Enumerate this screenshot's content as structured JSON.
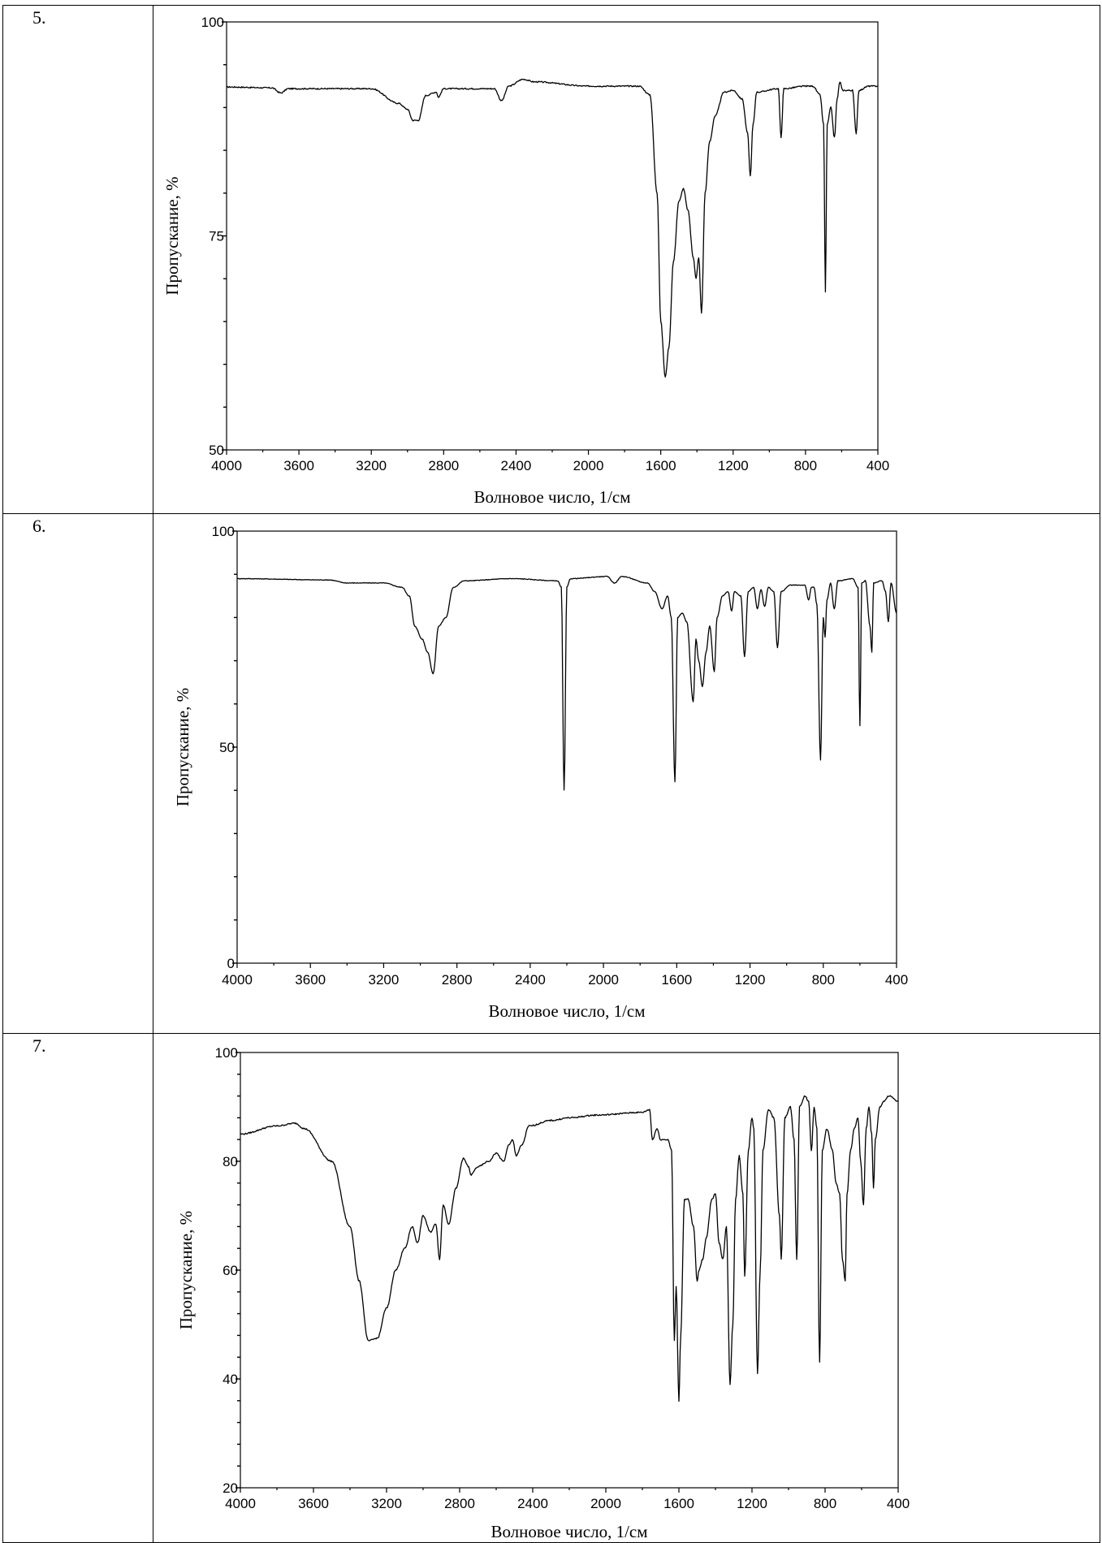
{
  "rows": [
    {
      "number": "5."
    },
    {
      "number": "6."
    },
    {
      "number": "7."
    }
  ],
  "chart_data": [
    {
      "type": "line",
      "xlabel": "Волновое число, 1/см",
      "ylabel": "Пропускание, %",
      "xlim": [
        4000,
        400
      ],
      "ylim": [
        50,
        100
      ],
      "x_ticks": [
        "4000",
        "3600",
        "3200",
        "2800",
        "2400",
        "2000",
        "1600",
        "1200",
        "800",
        "400"
      ],
      "y_ticks": [
        "50",
        "75",
        "100"
      ],
      "baseline": 92.5,
      "anchors": [
        [
          4000,
          92.4
        ],
        [
          3750,
          92.3
        ],
        [
          3700,
          91.7
        ],
        [
          3660,
          92.2
        ],
        [
          3200,
          92.2
        ],
        [
          3050,
          90.5
        ],
        [
          3000,
          89.8
        ],
        [
          2970,
          88.5
        ],
        [
          2940,
          88.5
        ],
        [
          2900,
          91.4
        ],
        [
          2840,
          91.8
        ],
        [
          2830,
          91.2
        ],
        [
          2800,
          92.2
        ],
        [
          2520,
          92.2
        ],
        [
          2480,
          90.8
        ],
        [
          2440,
          92.5
        ],
        [
          2360,
          93.3
        ],
        [
          2300,
          93.0
        ],
        [
          2000,
          92.5
        ],
        [
          1720,
          92.5
        ],
        [
          1660,
          91.5
        ],
        [
          1620,
          80
        ],
        [
          1600,
          65
        ],
        [
          1575,
          58.5
        ],
        [
          1555,
          62
        ],
        [
          1530,
          72
        ],
        [
          1500,
          79
        ],
        [
          1475,
          80.5
        ],
        [
          1450,
          78
        ],
        [
          1420,
          72.5
        ],
        [
          1405,
          70
        ],
        [
          1390,
          72.5
        ],
        [
          1375,
          66
        ],
        [
          1355,
          80
        ],
        [
          1330,
          86
        ],
        [
          1300,
          89
        ],
        [
          1250,
          91.8
        ],
        [
          1200,
          92
        ],
        [
          1150,
          91
        ],
        [
          1120,
          87
        ],
        [
          1105,
          82
        ],
        [
          1090,
          88
        ],
        [
          1070,
          91.8
        ],
        [
          950,
          92.2
        ],
        [
          935,
          86.5
        ],
        [
          920,
          92.2
        ],
        [
          800,
          92.5
        ],
        [
          760,
          92.5
        ],
        [
          720,
          91.5
        ],
        [
          700,
          88
        ],
        [
          690,
          68.5
        ],
        [
          680,
          88
        ],
        [
          660,
          90
        ],
        [
          640,
          86.5
        ],
        [
          625,
          91
        ],
        [
          610,
          93
        ],
        [
          595,
          92
        ],
        [
          540,
          92
        ],
        [
          520,
          87
        ],
        [
          505,
          92
        ],
        [
          450,
          92.5
        ],
        [
          400,
          92.5
        ]
      ],
      "noise": 0.15
    },
    {
      "type": "line",
      "xlabel": "Волновое число, 1/см",
      "ylabel": "Пропускание, %",
      "xlim": [
        4000,
        400
      ],
      "ylim": [
        0,
        100
      ],
      "x_ticks": [
        "4000",
        "3600",
        "3200",
        "2800",
        "2400",
        "2000",
        "1600",
        "1200",
        "800",
        "400"
      ],
      "y_ticks": [
        "0",
        "50",
        "100"
      ],
      "anchors": [
        [
          4000,
          89
        ],
        [
          3500,
          88.7
        ],
        [
          3400,
          88
        ],
        [
          3200,
          88
        ],
        [
          3100,
          87
        ],
        [
          3060,
          85
        ],
        [
          3030,
          78
        ],
        [
          2990,
          75
        ],
        [
          2960,
          72
        ],
        [
          2930,
          67
        ],
        [
          2900,
          78
        ],
        [
          2860,
          80
        ],
        [
          2820,
          87
        ],
        [
          2760,
          88.5
        ],
        [
          2500,
          89
        ],
        [
          2250,
          88.5
        ],
        [
          2230,
          87
        ],
        [
          2215,
          40
        ],
        [
          2200,
          87
        ],
        [
          2180,
          89
        ],
        [
          1980,
          89.5
        ],
        [
          1940,
          88
        ],
        [
          1900,
          89.5
        ],
        [
          1760,
          88
        ],
        [
          1720,
          86
        ],
        [
          1680,
          82
        ],
        [
          1650,
          85
        ],
        [
          1630,
          80
        ],
        [
          1610,
          42
        ],
        [
          1595,
          80
        ],
        [
          1570,
          81
        ],
        [
          1545,
          79
        ],
        [
          1510,
          60.5
        ],
        [
          1495,
          75
        ],
        [
          1480,
          70
        ],
        [
          1460,
          64
        ],
        [
          1440,
          72
        ],
        [
          1420,
          78
        ],
        [
          1395,
          67.5
        ],
        [
          1380,
          80
        ],
        [
          1350,
          85
        ],
        [
          1320,
          86
        ],
        [
          1300,
          81.5
        ],
        [
          1285,
          86
        ],
        [
          1250,
          85
        ],
        [
          1230,
          71
        ],
        [
          1210,
          86
        ],
        [
          1180,
          87
        ],
        [
          1160,
          82
        ],
        [
          1140,
          86.5
        ],
        [
          1120,
          82.5
        ],
        [
          1100,
          87
        ],
        [
          1070,
          86
        ],
        [
          1050,
          73
        ],
        [
          1030,
          86
        ],
        [
          980,
          87.5
        ],
        [
          900,
          87.5
        ],
        [
          880,
          84
        ],
        [
          865,
          87
        ],
        [
          850,
          87
        ],
        [
          835,
          83
        ],
        [
          815,
          47
        ],
        [
          800,
          80
        ],
        [
          790,
          75.5
        ],
        [
          780,
          84
        ],
        [
          760,
          88
        ],
        [
          740,
          82
        ],
        [
          720,
          88.5
        ],
        [
          640,
          89
        ],
        [
          610,
          87
        ],
        [
          600,
          55
        ],
        [
          590,
          88
        ],
        [
          570,
          88.5
        ],
        [
          545,
          78
        ],
        [
          535,
          72
        ],
        [
          525,
          88
        ],
        [
          480,
          88.5
        ],
        [
          460,
          86
        ],
        [
          445,
          79
        ],
        [
          430,
          88
        ],
        [
          400,
          81
        ]
      ],
      "noise": 0.15
    },
    {
      "type": "line",
      "xlabel": "Волновое число, 1/см",
      "ylabel": "Пропускание, %",
      "xlim": [
        4000,
        400
      ],
      "ylim": [
        20,
        100
      ],
      "x_ticks": [
        "4000",
        "3600",
        "3200",
        "2800",
        "2400",
        "2000",
        "1600",
        "1200",
        "800",
        "400"
      ],
      "y_ticks": [
        "20",
        "40",
        "60",
        "80",
        "100"
      ],
      "anchors": [
        [
          4000,
          85
        ],
        [
          3800,
          86.5
        ],
        [
          3700,
          87
        ],
        [
          3650,
          86
        ],
        [
          3500,
          80
        ],
        [
          3400,
          68
        ],
        [
          3350,
          58
        ],
        [
          3300,
          47
        ],
        [
          3250,
          47.5
        ],
        [
          3200,
          53
        ],
        [
          3150,
          60
        ],
        [
          3100,
          64
        ],
        [
          3060,
          68
        ],
        [
          3030,
          65
        ],
        [
          3000,
          70
        ],
        [
          2960,
          67
        ],
        [
          2930,
          68.5
        ],
        [
          2910,
          62
        ],
        [
          2890,
          72
        ],
        [
          2860,
          68.5
        ],
        [
          2820,
          75
        ],
        [
          2780,
          80.5
        ],
        [
          2750,
          79
        ],
        [
          2740,
          77.5
        ],
        [
          2700,
          79
        ],
        [
          2640,
          80
        ],
        [
          2600,
          81.5
        ],
        [
          2560,
          80
        ],
        [
          2530,
          83
        ],
        [
          2510,
          84
        ],
        [
          2490,
          81
        ],
        [
          2460,
          83
        ],
        [
          2420,
          86.5
        ],
        [
          2300,
          87.5
        ],
        [
          2200,
          88
        ],
        [
          2050,
          88.5
        ],
        [
          1800,
          89
        ],
        [
          1760,
          89.5
        ],
        [
          1745,
          84
        ],
        [
          1720,
          86
        ],
        [
          1700,
          84
        ],
        [
          1660,
          84
        ],
        [
          1640,
          82
        ],
        [
          1625,
          47
        ],
        [
          1615,
          57
        ],
        [
          1600,
          36
        ],
        [
          1590,
          48
        ],
        [
          1570,
          73
        ],
        [
          1550,
          73
        ],
        [
          1520,
          68
        ],
        [
          1500,
          58
        ],
        [
          1490,
          60
        ],
        [
          1470,
          62
        ],
        [
          1450,
          66
        ],
        [
          1420,
          73
        ],
        [
          1400,
          74
        ],
        [
          1380,
          65
        ],
        [
          1360,
          62
        ],
        [
          1340,
          68
        ],
        [
          1320,
          39
        ],
        [
          1305,
          50
        ],
        [
          1290,
          73
        ],
        [
          1270,
          81
        ],
        [
          1250,
          74
        ],
        [
          1240,
          59
        ],
        [
          1220,
          82
        ],
        [
          1200,
          88
        ],
        [
          1190,
          86
        ],
        [
          1170,
          41
        ],
        [
          1155,
          60
        ],
        [
          1140,
          82
        ],
        [
          1110,
          89.5
        ],
        [
          1080,
          88
        ],
        [
          1050,
          70
        ],
        [
          1040,
          62
        ],
        [
          1020,
          88
        ],
        [
          990,
          90
        ],
        [
          970,
          84
        ],
        [
          955,
          62
        ],
        [
          940,
          90
        ],
        [
          910,
          92
        ],
        [
          890,
          91
        ],
        [
          875,
          82
        ],
        [
          860,
          90
        ],
        [
          845,
          86
        ],
        [
          830,
          43
        ],
        [
          815,
          82
        ],
        [
          790,
          86
        ],
        [
          760,
          82
        ],
        [
          740,
          76
        ],
        [
          720,
          74
        ],
        [
          705,
          62
        ],
        [
          690,
          58
        ],
        [
          680,
          74
        ],
        [
          660,
          82
        ],
        [
          640,
          86
        ],
        [
          620,
          88
        ],
        [
          605,
          80
        ],
        [
          590,
          72
        ],
        [
          575,
          86
        ],
        [
          560,
          90
        ],
        [
          545,
          85
        ],
        [
          535,
          75
        ],
        [
          525,
          84
        ],
        [
          500,
          90
        ],
        [
          480,
          91
        ],
        [
          450,
          92
        ],
        [
          400,
          91
        ]
      ],
      "noise": 0.25
    }
  ]
}
